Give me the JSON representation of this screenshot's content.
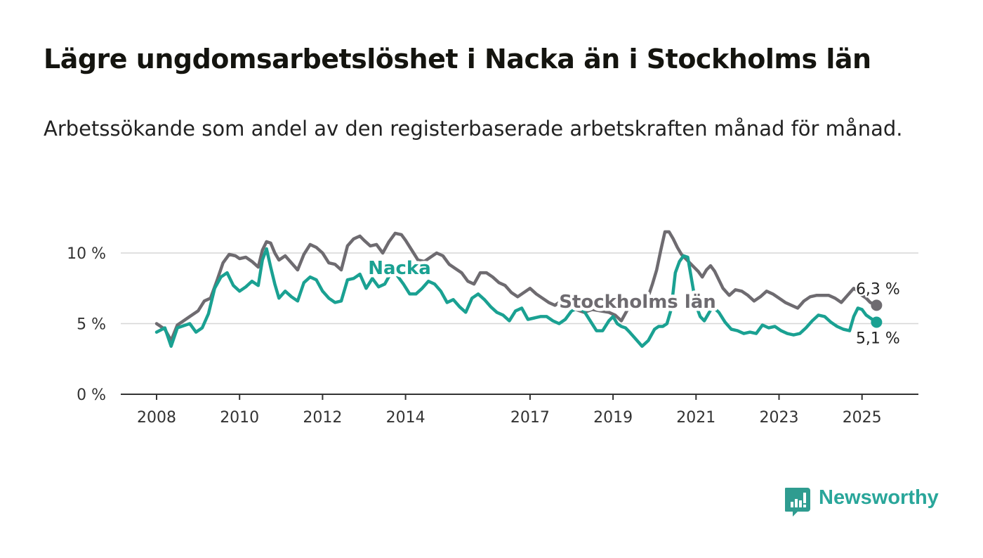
{
  "title": "Lägre ungdomsarbetslöshet i Nacka än i Stockholms län",
  "subtitle": "Arbetssökande som andel av den registerbaserade arbetskraften månad för månad.",
  "brand": {
    "name": "Newsworthy",
    "color": "#29a69a"
  },
  "chart_data": {
    "type": "line",
    "title": "Lägre ungdomsarbetslöshet i Nacka än i Stockholms län",
    "subtitle": "Arbetssökande som andel av den registerbaserade arbetskraften månad för månad.",
    "xlim": [
      2008.0,
      2026.2
    ],
    "ylim": [
      0,
      12
    ],
    "x_ticks": [
      2008,
      2010,
      2012,
      2014,
      2017,
      2019,
      2021,
      2023,
      2025
    ],
    "x_tick_labels": [
      "2008",
      "2010",
      "2012",
      "2014",
      "2017",
      "2019",
      "2021",
      "2023",
      "2025"
    ],
    "y_ticks": [
      0,
      5,
      10
    ],
    "y_tick_labels": [
      "0 %",
      "5 %",
      "10 %"
    ],
    "grid": true,
    "legend": "inline labels",
    "series": [
      {
        "name": "Stockholms län",
        "color": "#6e6b70",
        "end_label": "6,3 %",
        "x": [
          2008.0,
          2008.2,
          2008.35,
          2008.5,
          2008.6,
          2008.8,
          2009.0,
          2009.15,
          2009.3,
          2009.45,
          2009.6,
          2009.75,
          2009.9,
          2010.0,
          2010.15,
          2010.3,
          2010.45,
          2010.55,
          2010.65,
          2010.75,
          2010.85,
          2010.95,
          2011.1,
          2011.25,
          2011.4,
          2011.55,
          2011.7,
          2011.85,
          2012.0,
          2012.15,
          2012.3,
          2012.45,
          2012.6,
          2012.75,
          2012.9,
          2013.0,
          2013.15,
          2013.3,
          2013.45,
          2013.6,
          2013.75,
          2013.9,
          2014.0,
          2014.15,
          2014.3,
          2014.45,
          2014.6,
          2014.75,
          2014.9,
          2015.05,
          2015.2,
          2015.35,
          2015.5,
          2015.65,
          2015.8,
          2015.95,
          2016.1,
          2016.25,
          2016.4,
          2016.55,
          2016.7,
          2016.85,
          2017.0,
          2017.15,
          2017.3,
          2017.45,
          2017.6,
          2017.75,
          2017.9,
          2018.1,
          2018.3,
          2018.5,
          2018.7,
          2018.9,
          2019.05,
          2019.2,
          2019.35,
          2019.5,
          2019.65,
          2019.8,
          2019.95,
          2020.05,
          2020.15,
          2020.25,
          2020.35,
          2020.45,
          2020.55,
          2020.65,
          2020.75,
          2020.85,
          2020.95,
          2021.05,
          2021.15,
          2021.25,
          2021.35,
          2021.45,
          2021.55,
          2021.65,
          2021.8,
          2021.95,
          2022.1,
          2022.25,
          2022.4,
          2022.55,
          2022.7,
          2022.85,
          2023.0,
          2023.15,
          2023.3,
          2023.45,
          2023.6,
          2023.75,
          2023.9,
          2024.05,
          2024.2,
          2024.35,
          2024.5,
          2024.65,
          2024.8,
          2024.9,
          2025.0,
          2025.1,
          2025.2,
          2025.35
        ],
        "y": [
          5.0,
          4.6,
          3.8,
          4.9,
          5.1,
          5.5,
          5.9,
          6.6,
          6.8,
          8.0,
          9.3,
          9.9,
          9.8,
          9.6,
          9.7,
          9.4,
          9.0,
          10.2,
          10.8,
          10.7,
          10.0,
          9.5,
          9.8,
          9.3,
          8.8,
          9.9,
          10.6,
          10.4,
          10.0,
          9.3,
          9.2,
          8.8,
          10.5,
          11.0,
          11.2,
          10.9,
          10.5,
          10.6,
          10.0,
          10.8,
          11.4,
          11.3,
          10.9,
          10.2,
          9.5,
          9.4,
          9.7,
          10.0,
          9.8,
          9.2,
          8.9,
          8.6,
          8.0,
          7.8,
          8.6,
          8.6,
          8.3,
          7.9,
          7.7,
          7.2,
          6.9,
          7.2,
          7.5,
          7.1,
          6.8,
          6.5,
          6.3,
          6.6,
          6.4,
          6.0,
          5.8,
          6.0,
          5.9,
          5.8,
          5.6,
          5.2,
          6.0,
          6.2,
          6.4,
          6.5,
          7.8,
          8.8,
          10.2,
          11.5,
          11.5,
          11.0,
          10.4,
          9.9,
          9.6,
          9.3,
          9.0,
          8.7,
          8.3,
          8.8,
          9.1,
          8.7,
          8.1,
          7.5,
          7.0,
          7.4,
          7.3,
          7.0,
          6.6,
          6.9,
          7.3,
          7.1,
          6.8,
          6.5,
          6.3,
          6.1,
          6.6,
          6.9,
          7.0,
          7.0,
          7.0,
          6.8,
          6.5,
          7.0,
          7.5,
          7.3,
          7.0,
          6.8,
          6.5,
          6.3
        ]
      },
      {
        "name": "Nacka",
        "color": "#1aa192",
        "end_label": "5,1 %",
        "x": [
          2008.0,
          2008.2,
          2008.35,
          2008.5,
          2008.6,
          2008.8,
          2008.95,
          2009.1,
          2009.25,
          2009.4,
          2009.55,
          2009.7,
          2009.85,
          2010.0,
          2010.15,
          2010.3,
          2010.45,
          2010.55,
          2010.65,
          2010.75,
          2010.85,
          2010.95,
          2011.1,
          2011.25,
          2011.4,
          2011.55,
          2011.7,
          2011.85,
          2012.0,
          2012.15,
          2012.3,
          2012.45,
          2012.6,
          2012.75,
          2012.9,
          2013.05,
          2013.2,
          2013.35,
          2013.5,
          2013.65,
          2013.8,
          2013.95,
          2014.1,
          2014.25,
          2014.4,
          2014.55,
          2014.7,
          2014.85,
          2015.0,
          2015.15,
          2015.3,
          2015.45,
          2015.6,
          2015.75,
          2015.9,
          2016.05,
          2016.2,
          2016.35,
          2016.5,
          2016.65,
          2016.8,
          2016.95,
          2017.1,
          2017.25,
          2017.4,
          2017.55,
          2017.7,
          2017.85,
          2018.0,
          2018.15,
          2018.3,
          2018.45,
          2018.6,
          2018.75,
          2018.9,
          2019.0,
          2019.1,
          2019.2,
          2019.3,
          2019.4,
          2019.55,
          2019.7,
          2019.85,
          2020.0,
          2020.1,
          2020.2,
          2020.3,
          2020.4,
          2020.5,
          2020.6,
          2020.7,
          2020.8,
          2020.9,
          2021.0,
          2021.1,
          2021.2,
          2021.3,
          2021.4,
          2021.55,
          2021.7,
          2021.85,
          2022.0,
          2022.15,
          2022.3,
          2022.45,
          2022.6,
          2022.75,
          2022.9,
          2023.05,
          2023.2,
          2023.35,
          2023.5,
          2023.65,
          2023.8,
          2023.95,
          2024.1,
          2024.25,
          2024.4,
          2024.55,
          2024.7,
          2024.8,
          2024.9,
          2025.0,
          2025.1,
          2025.2,
          2025.35
        ],
        "y": [
          4.4,
          4.7,
          3.4,
          4.7,
          4.8,
          5.0,
          4.4,
          4.7,
          5.7,
          7.5,
          8.3,
          8.6,
          7.7,
          7.3,
          7.6,
          8.0,
          7.7,
          9.5,
          10.3,
          9.0,
          7.8,
          6.8,
          7.3,
          6.9,
          6.6,
          7.9,
          8.3,
          8.1,
          7.3,
          6.8,
          6.5,
          6.6,
          8.1,
          8.2,
          8.5,
          7.5,
          8.2,
          7.6,
          7.8,
          8.6,
          8.4,
          7.8,
          7.1,
          7.1,
          7.5,
          8.0,
          7.8,
          7.3,
          6.5,
          6.7,
          6.2,
          5.8,
          6.8,
          7.1,
          6.7,
          6.2,
          5.8,
          5.6,
          5.2,
          5.9,
          6.1,
          5.3,
          5.4,
          5.5,
          5.5,
          5.2,
          5.0,
          5.3,
          5.9,
          6.1,
          5.9,
          5.2,
          4.5,
          4.5,
          5.2,
          5.5,
          5.0,
          4.8,
          4.7,
          4.4,
          3.9,
          3.4,
          3.8,
          4.6,
          4.8,
          4.8,
          5.0,
          6.0,
          8.6,
          9.4,
          9.8,
          9.7,
          8.0,
          6.3,
          5.5,
          5.2,
          5.7,
          6.2,
          5.8,
          5.1,
          4.6,
          4.5,
          4.3,
          4.4,
          4.3,
          4.9,
          4.7,
          4.8,
          4.5,
          4.3,
          4.2,
          4.3,
          4.7,
          5.2,
          5.6,
          5.5,
          5.1,
          4.8,
          4.6,
          4.5,
          5.5,
          6.1,
          6.0,
          5.6,
          5.4,
          5.1
        ]
      }
    ],
    "annotations": [
      "Nacka",
      "Stockholms län",
      "6,3 %",
      "5,1 %"
    ]
  }
}
